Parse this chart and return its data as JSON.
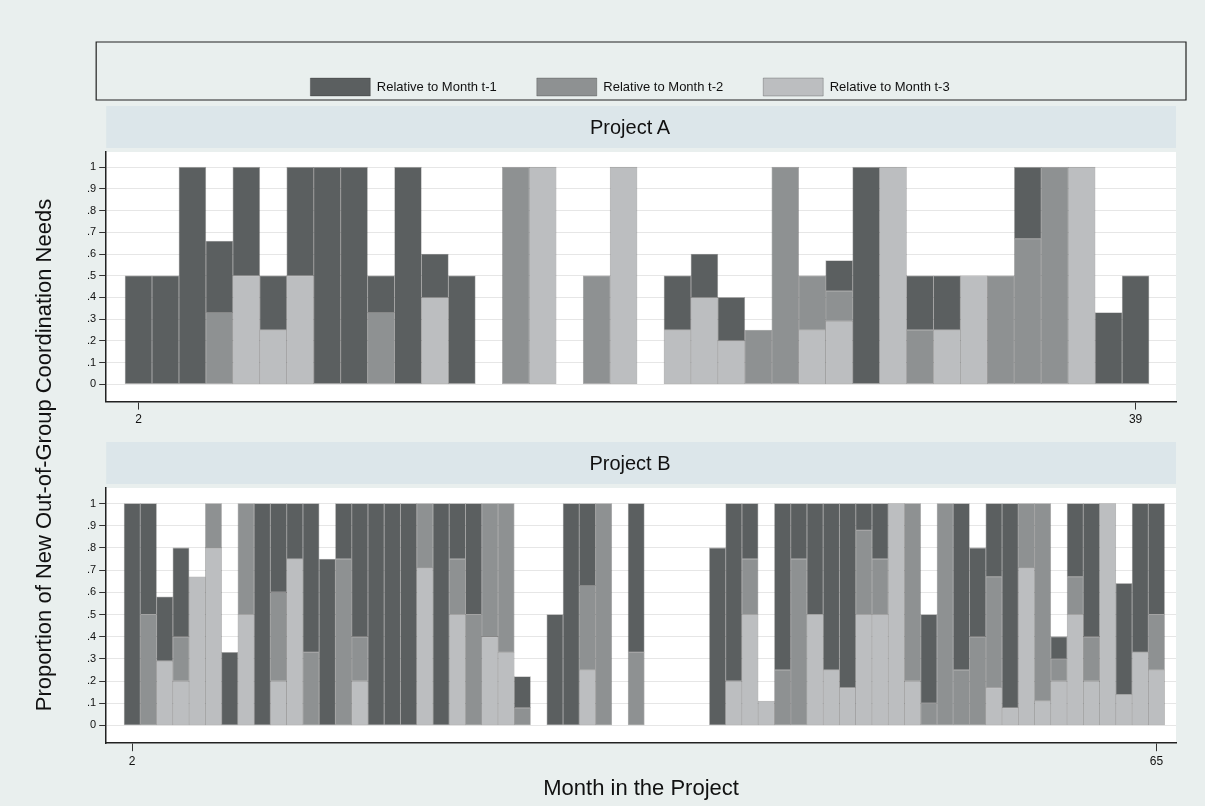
{
  "chart_data": [
    {
      "type": "bar",
      "title": "Project A",
      "ylabel": "Proportion of New Out-of-Group Coordination Needs",
      "stacked": true,
      "legend": "top",
      "grid": "y",
      "x": [
        2,
        3,
        4,
        5,
        6,
        7,
        8,
        9,
        10,
        11,
        12,
        13,
        14,
        15,
        16,
        17,
        18,
        19,
        20,
        21,
        22,
        23,
        24,
        25,
        26,
        27,
        28,
        29,
        30,
        31,
        32,
        33,
        34,
        35,
        36,
        37,
        38,
        39
      ],
      "xlim": [
        0.8,
        40.5
      ],
      "xticks": [
        2,
        39
      ],
      "ylim": [
        -0.08,
        1.07
      ],
      "yticks": [
        {
          "value": 0,
          "label": "0"
        },
        {
          "value": 0.1,
          "label": ".1"
        },
        {
          "value": 0.2,
          "label": ".2"
        },
        {
          "value": 0.3,
          "label": ".3"
        },
        {
          "value": 0.4,
          "label": ".4"
        },
        {
          "value": 0.5,
          "label": ".5"
        },
        {
          "value": 0.6,
          "label": ".6"
        },
        {
          "value": 0.7,
          "label": ".7"
        },
        {
          "value": 0.8,
          "label": ".8"
        },
        {
          "value": 0.9,
          "label": ".9"
        },
        {
          "value": 1,
          "label": "1"
        }
      ],
      "series": [
        {
          "name": "Relative to Month t-3",
          "color": "#bcbec0",
          "values": [
            null,
            null,
            null,
            null,
            0.5,
            0.25,
            0.5,
            null,
            null,
            null,
            null,
            0.4,
            null,
            null,
            null,
            1,
            null,
            null,
            1,
            null,
            0.25,
            0.4,
            0.2,
            null,
            null,
            0.25,
            0.29,
            null,
            1,
            null,
            0.25,
            0.5,
            null,
            null,
            null,
            1,
            null,
            null
          ]
        },
        {
          "name": "Relative to Month t-2",
          "color": "#8e9192",
          "values": [
            null,
            null,
            null,
            0.33,
            null,
            null,
            null,
            null,
            null,
            0.33,
            null,
            null,
            null,
            null,
            1,
            null,
            null,
            0.5,
            null,
            null,
            null,
            null,
            null,
            0.25,
            1,
            0.25,
            0.14,
            null,
            null,
            0.25,
            null,
            null,
            0.5,
            0.67,
            1,
            null,
            null,
            null
          ]
        },
        {
          "name": "Relative to Month t-1",
          "color": "#5b5f60",
          "values": [
            0.5,
            0.5,
            1,
            0.33,
            0.5,
            0.25,
            0.5,
            1,
            1,
            0.17,
            1,
            0.2,
            0.5,
            null,
            null,
            null,
            null,
            null,
            null,
            null,
            0.25,
            0.2,
            0.2,
            null,
            null,
            null,
            0.14,
            1,
            null,
            0.25,
            0.25,
            null,
            null,
            0.33,
            null,
            null,
            0.33,
            0.5
          ]
        }
      ]
    },
    {
      "type": "bar",
      "title": "Project B",
      "xlabel": "Month in the Project",
      "stacked": true,
      "grid": "y",
      "x": [
        2,
        3,
        4,
        5,
        6,
        7,
        8,
        9,
        10,
        11,
        12,
        13,
        14,
        15,
        16,
        17,
        18,
        19,
        20,
        21,
        22,
        23,
        24,
        25,
        26,
        27,
        28,
        29,
        30,
        31,
        32,
        33,
        34,
        35,
        36,
        37,
        38,
        39,
        40,
        41,
        42,
        43,
        44,
        45,
        46,
        47,
        48,
        49,
        50,
        51,
        52,
        53,
        54,
        55,
        56,
        57,
        58,
        59,
        60,
        61,
        62,
        63,
        64,
        65
      ],
      "xlim": [
        0.4,
        66.2
      ],
      "xticks": [
        2,
        65
      ],
      "ylim": [
        -0.08,
        1.07
      ],
      "yticks": [
        {
          "value": 0,
          "label": "0"
        },
        {
          "value": 0.1,
          "label": ".1"
        },
        {
          "value": 0.2,
          "label": ".2"
        },
        {
          "value": 0.3,
          "label": ".3"
        },
        {
          "value": 0.4,
          "label": ".4"
        },
        {
          "value": 0.5,
          "label": ".5"
        },
        {
          "value": 0.6,
          "label": ".6"
        },
        {
          "value": 0.7,
          "label": ".7"
        },
        {
          "value": 0.8,
          "label": ".8"
        },
        {
          "value": 0.9,
          "label": ".9"
        },
        {
          "value": 1,
          "label": "1"
        }
      ],
      "series": [
        {
          "color": "#bcbec0",
          "values": [
            null,
            null,
            0.29,
            0.2,
            0.67,
            0.8,
            null,
            0.5,
            null,
            0.2,
            0.75,
            null,
            null,
            null,
            0.2,
            null,
            null,
            null,
            0.71,
            null,
            0.5,
            null,
            0.4,
            0.33,
            null,
            null,
            null,
            null,
            0.25,
            null,
            null,
            null,
            null,
            null,
            null,
            null,
            null,
            0.2,
            0.5,
            0.11,
            null,
            null,
            0.5,
            0.25,
            0.17,
            0.5,
            0.5,
            1,
            0.2,
            null,
            null,
            null,
            null,
            0.17,
            0.08,
            0.71,
            0.11,
            0.2,
            0.5,
            0.2,
            1,
            0.14,
            0.33,
            0.25
          ]
        },
        {
          "color": "#8e9192",
          "values": [
            null,
            0.5,
            null,
            0.2,
            null,
            0.2,
            null,
            0.5,
            null,
            0.4,
            null,
            0.33,
            null,
            0.75,
            0.2,
            null,
            null,
            null,
            0.29,
            null,
            0.25,
            0.5,
            0.6,
            0.67,
            0.08,
            null,
            null,
            null,
            0.38,
            1,
            null,
            0.33,
            null,
            null,
            null,
            null,
            null,
            null,
            0.25,
            null,
            0.25,
            0.75,
            null,
            null,
            null,
            0.38,
            0.25,
            null,
            0.8,
            0.1,
            1,
            0.25,
            0.4,
            0.5,
            null,
            0.29,
            0.89,
            0.1,
            0.17,
            0.2,
            null,
            null,
            null,
            0.25
          ]
        },
        {
          "color": "#5b5f60",
          "values": [
            1,
            0.5,
            0.29,
            0.4,
            null,
            null,
            0.33,
            null,
            1,
            0.4,
            0.25,
            0.67,
            0.75,
            0.25,
            0.6,
            1,
            1,
            1,
            null,
            1,
            0.25,
            0.5,
            null,
            null,
            0.14,
            null,
            0.5,
            1,
            0.37,
            null,
            null,
            0.67,
            null,
            null,
            null,
            null,
            0.8,
            0.8,
            0.25,
            null,
            0.75,
            0.25,
            0.5,
            0.75,
            0.83,
            0.12,
            0.25,
            null,
            null,
            0.4,
            null,
            0.75,
            0.4,
            0.33,
            0.92,
            null,
            null,
            0.1,
            0.33,
            0.6,
            null,
            0.5,
            0.67,
            0.5
          ]
        }
      ]
    }
  ]
}
